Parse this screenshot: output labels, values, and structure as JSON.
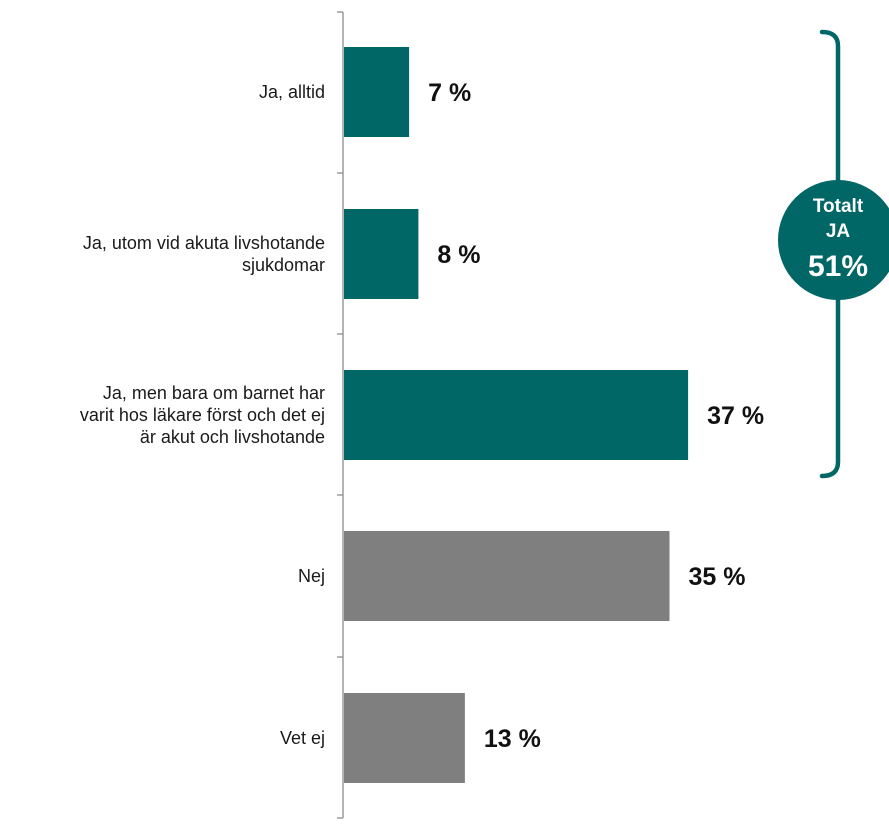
{
  "chart_data": {
    "type": "bar",
    "orientation": "horizontal",
    "categories": [
      "Ja, alltid",
      "Ja, utom vid akuta livshotande sjukdomar",
      "Ja, men bara om barnet har varit hos läkare först och det ej är akut och livshotande",
      "Nej",
      "Vet ej"
    ],
    "category_lines": [
      [
        "Ja, alltid"
      ],
      [
        "Ja, utom vid akuta livshotande",
        "sjukdomar"
      ],
      [
        "Ja, men bara om barnet har",
        "varit hos läkare först och det ej",
        "är akut och livshotande"
      ],
      [
        "Nej"
      ],
      [
        "Vet ej"
      ]
    ],
    "values": [
      7,
      8,
      37,
      35,
      13
    ],
    "value_labels": [
      "7 %",
      "8 %",
      "37 %",
      "35 %",
      "13 %"
    ],
    "unit": "%",
    "bar_colors": [
      "#006666",
      "#006666",
      "#006666",
      "#7f7f7f",
      "#7f7f7f"
    ],
    "xlim": [
      0,
      100
    ],
    "grid": false,
    "legend": "none",
    "annotation": {
      "type": "bracket",
      "spans_categories": [
        0,
        1,
        2
      ],
      "lines": [
        "Totalt",
        "JA",
        "51%"
      ],
      "color": "#006666"
    }
  }
}
